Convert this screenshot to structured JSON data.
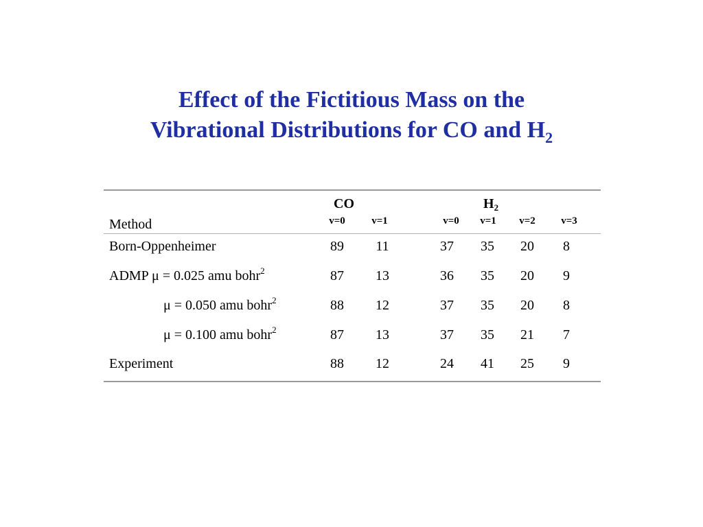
{
  "title": {
    "line1": "Effect of the Fictitious Mass on the",
    "line2": "Vibrational Distributions for CO and H",
    "line2_sub": "2"
  },
  "table": {
    "method_header": "Method",
    "groups": [
      {
        "name": "CO",
        "name_sub": ""
      },
      {
        "name": "H",
        "name_sub": "2"
      }
    ],
    "columns": [
      "v=0",
      "v=1",
      "v=0",
      "v=1",
      "v=2",
      "v=3"
    ],
    "rows": [
      {
        "label": "Born-Oppenheimer",
        "label_sup": "",
        "values": [
          "89",
          "11",
          "37",
          "35",
          "20",
          "8"
        ]
      },
      {
        "label": "ADMP μ = 0.025 amu bohr",
        "label_sup": "2",
        "values": [
          "87",
          "13",
          "36",
          "35",
          "20",
          "9"
        ]
      },
      {
        "label": "μ = 0.050 amu bohr",
        "label_sup": "2",
        "values": [
          "88",
          "12",
          "37",
          "35",
          "20",
          "8"
        ]
      },
      {
        "label": "μ = 0.100 amu bohr",
        "label_sup": "2",
        "values": [
          "87",
          "13",
          "37",
          "35",
          "21",
          "7"
        ]
      },
      {
        "label": "Experiment",
        "label_sup": "",
        "values": [
          "88",
          "12",
          "24",
          "41",
          "25",
          "9"
        ]
      }
    ]
  },
  "colors": {
    "title": "#1f2fa3",
    "rules": "#999999"
  }
}
